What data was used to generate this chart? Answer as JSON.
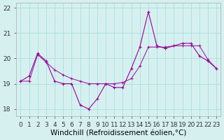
{
  "x": [
    0,
    1,
    2,
    3,
    4,
    5,
    6,
    7,
    8,
    9,
    10,
    11,
    12,
    13,
    14,
    15,
    16,
    17,
    18,
    19,
    20,
    21,
    22,
    23
  ],
  "line1": [
    19.1,
    19.3,
    20.2,
    19.9,
    19.1,
    19.0,
    19.0,
    18.15,
    18.0,
    18.4,
    19.0,
    18.85,
    18.85,
    19.6,
    20.45,
    21.85,
    20.5,
    20.4,
    20.5,
    20.6,
    20.6,
    20.1,
    19.9,
    19.6
  ],
  "line2": [
    19.1,
    19.1,
    20.15,
    19.85,
    19.55,
    19.35,
    19.2,
    19.1,
    19.0,
    19.0,
    19.0,
    19.0,
    19.05,
    19.2,
    19.7,
    20.45,
    20.45,
    20.45,
    20.5,
    20.5,
    20.5,
    20.5,
    19.95,
    19.6
  ],
  "color1": "#990099",
  "color2": "#990099",
  "bg_color": "#d6f0f0",
  "grid_color": "#aadddd",
  "xlabel": "Windchill (Refroidissement éolien,°C)",
  "xlabel_fontsize": 7.5,
  "tick_fontsize": 6.5,
  "ylim": [
    17.7,
    22.2
  ],
  "yticks": [
    18,
    19,
    20,
    21,
    22
  ],
  "xticks": [
    0,
    1,
    2,
    3,
    4,
    5,
    6,
    7,
    8,
    9,
    10,
    11,
    12,
    13,
    14,
    15,
    16,
    17,
    18,
    19,
    20,
    21,
    22,
    23
  ],
  "marker": "+",
  "markersize": 3,
  "linewidth": 0.8
}
